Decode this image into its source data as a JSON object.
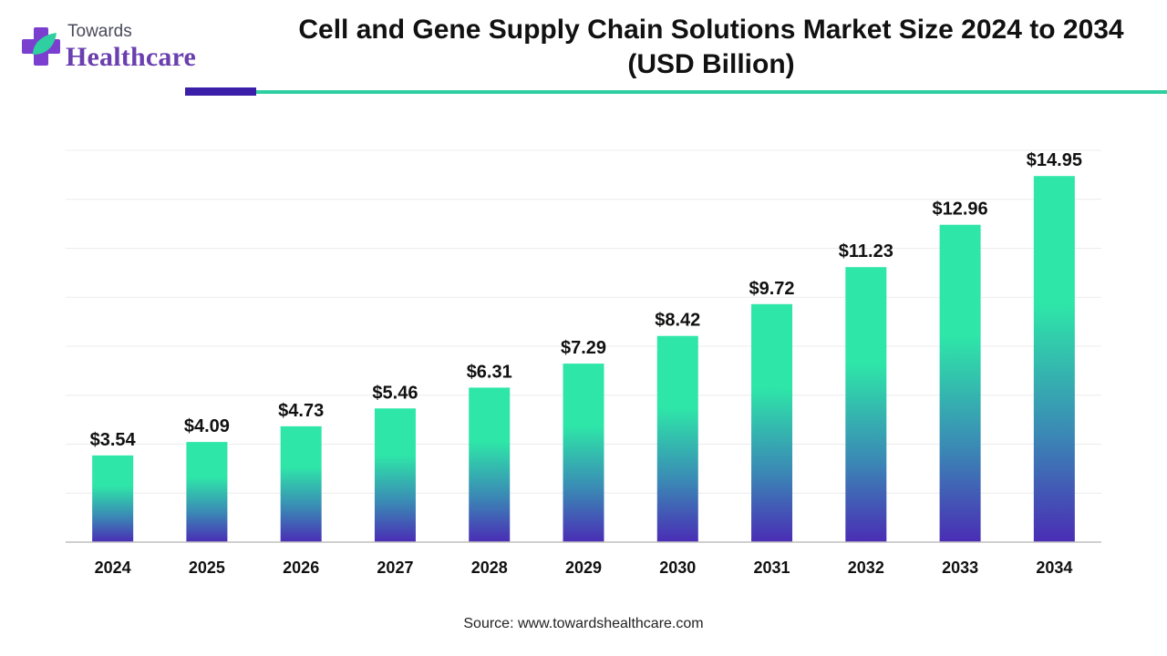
{
  "brand": {
    "top": "Towards",
    "main": "Healthcare"
  },
  "header": {
    "title_line1": "Cell and Gene Supply Chain Solutions Market Size 2024 to 2034",
    "title_line2": "(USD Billion)"
  },
  "colors": {
    "bar_top": "#2ee6a8",
    "bar_bottom": "#4a2db5",
    "accent_purple": "#3c1fa8",
    "accent_teal": "#2ecfa0"
  },
  "chart_data": {
    "type": "bar",
    "categories": [
      "2024",
      "2025",
      "2026",
      "2027",
      "2028",
      "2029",
      "2030",
      "2031",
      "2032",
      "2033",
      "2034"
    ],
    "values": [
      3.54,
      4.09,
      4.73,
      5.46,
      6.31,
      7.29,
      8.42,
      9.72,
      11.23,
      12.96,
      14.95
    ],
    "data_labels": [
      "$3.54",
      "$4.09",
      "$4.73",
      "$5.46",
      "$6.31",
      "$7.29",
      "$8.42",
      "$9.72",
      "$11.23",
      "$12.96",
      "$14.95"
    ],
    "ylim": [
      0,
      16
    ],
    "grid": true,
    "xlabel": "",
    "ylabel": ""
  },
  "footer": {
    "source": "Source: www.towardshealthcare.com"
  }
}
